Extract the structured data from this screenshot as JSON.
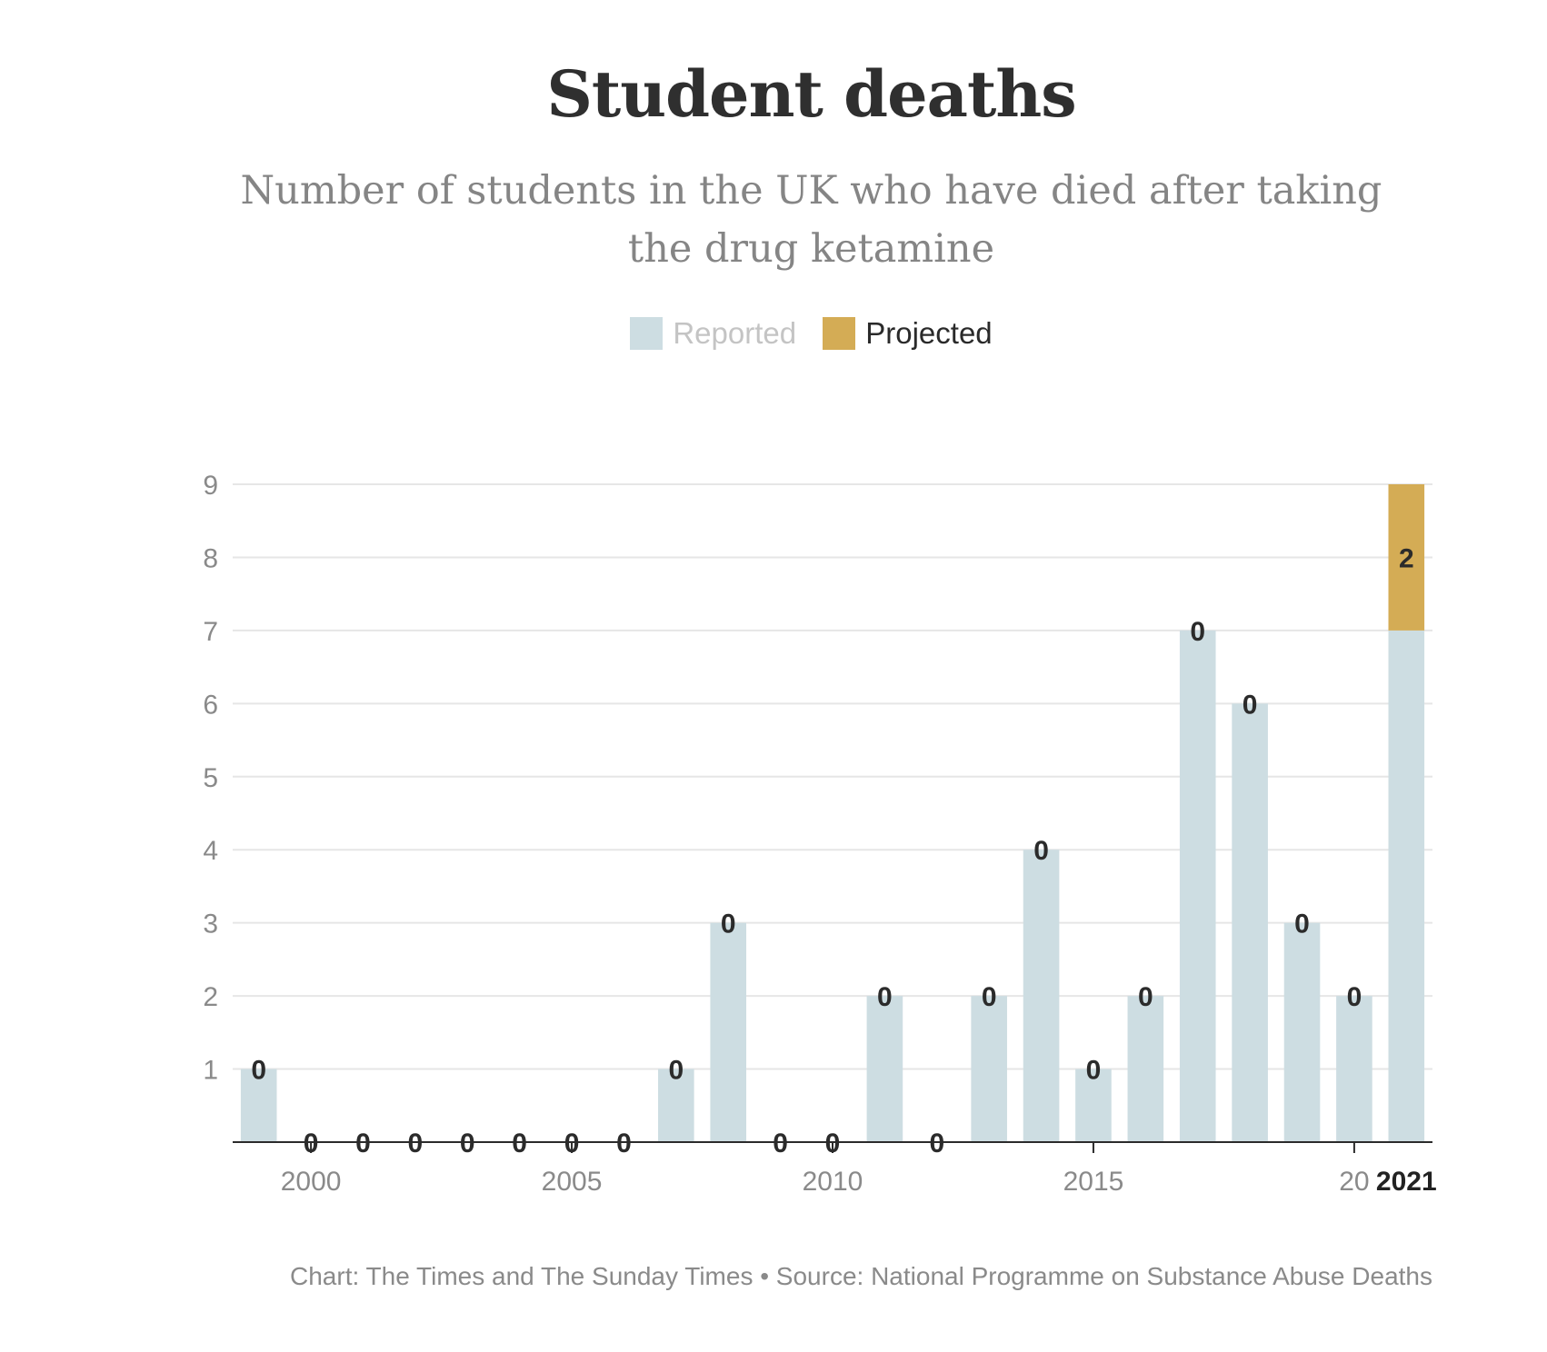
{
  "chart_data": {
    "type": "bar",
    "title": "Student deaths",
    "subtitle": "Number of students in the UK who have died after taking the drug ketamine",
    "x": [
      1999,
      2000,
      2001,
      2002,
      2003,
      2004,
      2005,
      2006,
      2007,
      2008,
      2009,
      2010,
      2011,
      2012,
      2013,
      2014,
      2015,
      2016,
      2017,
      2018,
      2019,
      2020,
      2021
    ],
    "series": [
      {
        "name": "Reported",
        "color": "#cddde2",
        "values": [
          1,
          0,
          0,
          0,
          0,
          0,
          0,
          0,
          1,
          3,
          0,
          0,
          2,
          0,
          2,
          4,
          1,
          2,
          7,
          6,
          3,
          2,
          7
        ]
      },
      {
        "name": "Projected",
        "color": "#d4ac55",
        "values": [
          0,
          0,
          0,
          0,
          0,
          0,
          0,
          0,
          0,
          0,
          0,
          0,
          0,
          0,
          0,
          0,
          0,
          0,
          0,
          0,
          0,
          0,
          2
        ]
      }
    ],
    "bar_labels": [
      "0",
      "0",
      "0",
      "0",
      "0",
      "0",
      "0",
      "0",
      "0",
      "0",
      "0",
      "0",
      "0",
      "0",
      "0",
      "0",
      "0",
      "0",
      "0",
      "0",
      "0",
      "0",
      "2"
    ],
    "y_ticks": [
      "1",
      "2",
      "3",
      "4",
      "5",
      "6",
      "7",
      "8",
      "9"
    ],
    "x_ticks": [
      "2000",
      "2005",
      "2010",
      "2015",
      "20"
    ],
    "x_tick_values": [
      2000,
      2005,
      2010,
      2015,
      2020
    ],
    "x_highlight_label": "2021",
    "ylim": [
      0,
      9
    ],
    "xlabel": "",
    "ylabel": "",
    "grid": true,
    "legend_position": "top-center"
  },
  "source": "Chart: The Times and The Sunday Times • Source: National Programme on Substance Abuse Deaths"
}
